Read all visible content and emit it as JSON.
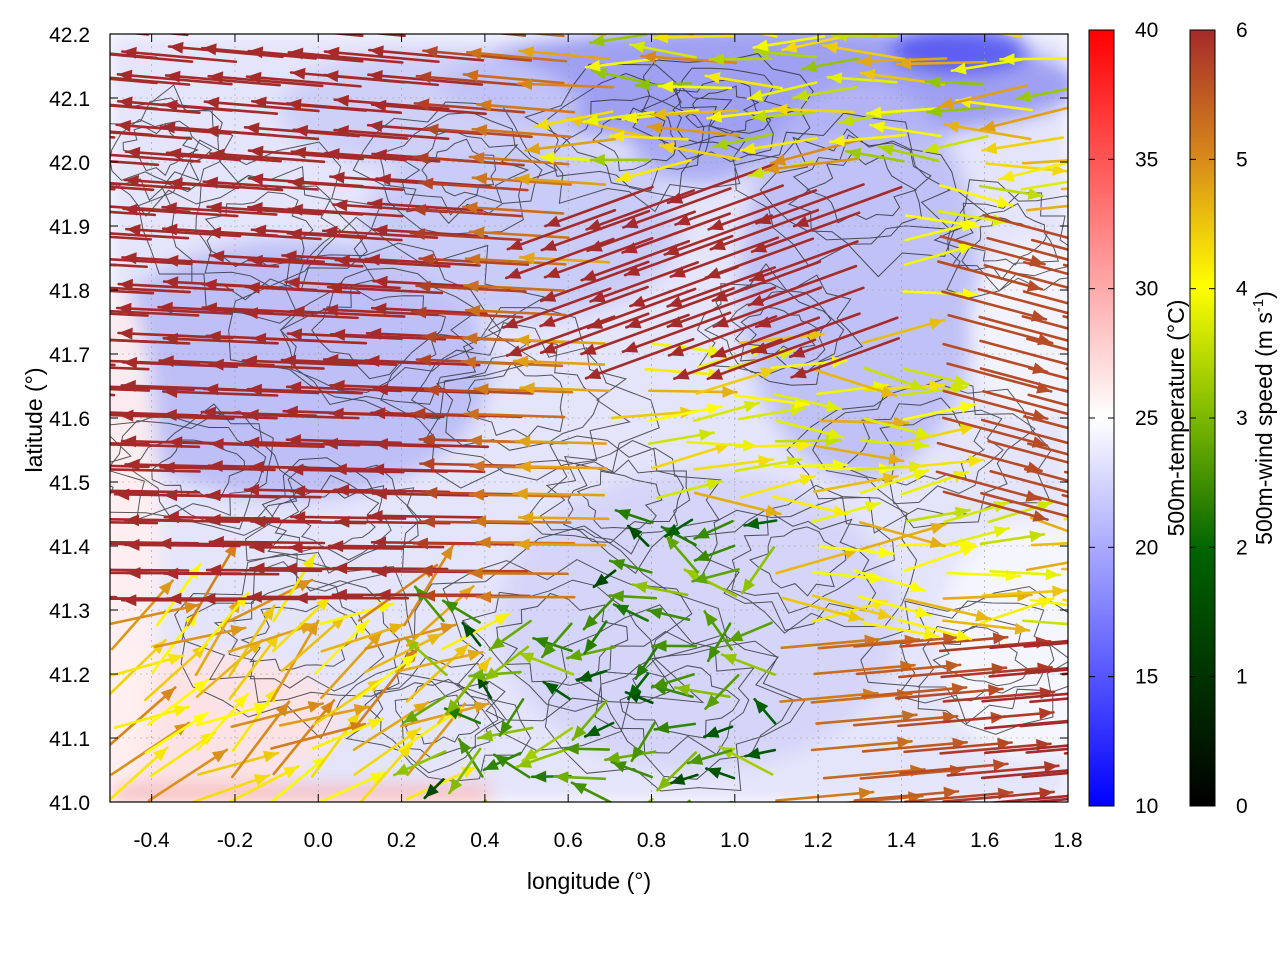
{
  "figure": {
    "xlabel": "longitude (°)",
    "ylabel": "latitude (°)",
    "x_ticks": [
      "-0.4",
      "-0.2",
      "0.0",
      "0.2",
      "0.4",
      "0.6",
      "0.8",
      "1.0",
      "1.2",
      "1.4",
      "1.6",
      "1.8"
    ],
    "y_ticks": [
      "41.0",
      "41.1",
      "41.2",
      "41.3",
      "41.4",
      "41.5",
      "41.6",
      "41.7",
      "41.8",
      "41.9",
      "42.0",
      "42.1",
      "42.2"
    ],
    "x_range": [
      -0.5,
      1.8
    ],
    "y_range": [
      41.0,
      42.2
    ]
  },
  "colorbars": {
    "temperature": {
      "label": "500m-temperature (°C)",
      "ticks": [
        "10",
        "15",
        "20",
        "25",
        "30",
        "35",
        "40"
      ],
      "range": [
        10,
        40
      ],
      "colors": [
        "#0000ff",
        "#ffffff",
        "#ff0000"
      ]
    },
    "wind": {
      "label_text": "500m-wind speed (m s",
      "label_sup": "-1",
      "label_close": ")",
      "ticks": [
        "0",
        "1",
        "2",
        "3",
        "4",
        "5",
        "6"
      ],
      "range": [
        0,
        6
      ],
      "colors": [
        "#000000",
        "#006400",
        "#7cb800",
        "#ffff00",
        "#d98c1a",
        "#a52a2a"
      ]
    }
  },
  "chart_data": {
    "type": "heatmap",
    "title": "",
    "xlabel": "longitude (°)",
    "ylabel": "latitude (°)",
    "xlim": [
      -0.5,
      1.8
    ],
    "ylim": [
      41.0,
      42.2
    ],
    "grid": true,
    "layers": [
      {
        "name": "500m-temperature (°C)",
        "kind": "filled field",
        "range": [
          10,
          40
        ],
        "typical": [
          17,
          27
        ]
      },
      {
        "name": "500m-wind speed (m s-1)",
        "kind": "vector arrows",
        "range": [
          0,
          6
        ]
      },
      {
        "name": "terrain",
        "kind": "contour lines"
      }
    ],
    "wind_regions": [
      {
        "lon": [
          -0.5,
          0.7
        ],
        "lat": [
          41.3,
          42.2
        ],
        "speed": 6,
        "direction": "westward"
      },
      {
        "lon": [
          0.5,
          1.4
        ],
        "lat": [
          41.7,
          42.0
        ],
        "speed": 6,
        "direction": "westward"
      },
      {
        "lon": [
          1.1,
          1.8
        ],
        "lat": [
          41.0,
          41.25
        ],
        "speed": 6,
        "direction": "eastward"
      },
      {
        "lon": [
          1.5,
          1.8
        ],
        "lat": [
          41.5,
          41.9
        ],
        "speed": 6,
        "direction": "eastward"
      },
      {
        "lon": [
          0.3,
          1.1
        ],
        "lat": [
          41.0,
          41.45
        ],
        "speed": 2,
        "direction": "variable"
      },
      {
        "lon": [
          -0.5,
          0.3
        ],
        "lat": [
          41.0,
          41.3
        ],
        "speed": 4,
        "direction": "northeast"
      }
    ]
  }
}
